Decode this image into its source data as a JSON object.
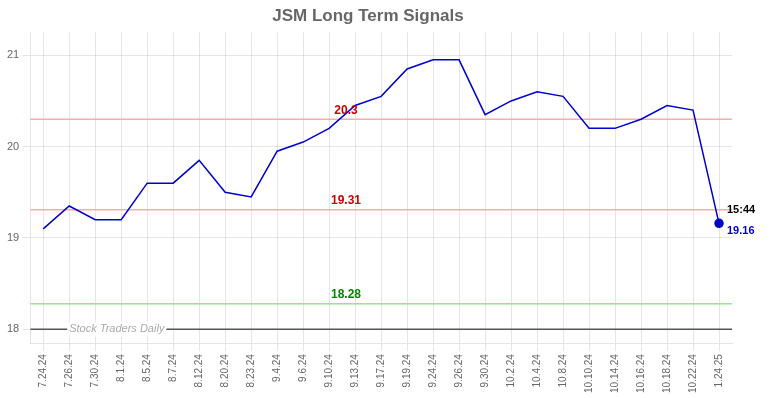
{
  "chart_data": {
    "type": "line",
    "title": "JSM Long Term Signals",
    "categories": [
      "7.24.24",
      "7.26.24",
      "7.30.24",
      "8.1.24",
      "8.5.24",
      "8.7.24",
      "8.12.24",
      "8.20.24",
      "8.23.24",
      "9.4.24",
      "9.6.24",
      "9.10.24",
      "9.13.24",
      "9.17.24",
      "9.19.24",
      "9.24.24",
      "9.26.24",
      "9.30.24",
      "10.2.24",
      "10.4.24",
      "10.8.24",
      "10.10.24",
      "10.14.24",
      "10.16.24",
      "10.18.24",
      "10.22.24",
      "1.24.25"
    ],
    "values": [
      19.1,
      19.35,
      19.2,
      19.2,
      19.6,
      19.6,
      19.85,
      19.5,
      19.45,
      19.95,
      20.05,
      20.2,
      20.45,
      20.55,
      20.85,
      20.95,
      20.95,
      20.35,
      20.5,
      20.6,
      20.55,
      20.2,
      20.2,
      20.3,
      20.45,
      20.4,
      19.16
    ],
    "color": "#0000cc",
    "ylim": [
      17.85,
      21.25
    ],
    "yticks": [
      18,
      19,
      20,
      21
    ],
    "grid": true,
    "hlines": [
      {
        "value": 20.3,
        "label": "20.3",
        "color": "#ffaaaa",
        "label_color": "#cc0000"
      },
      {
        "value": 19.31,
        "label": "19.31",
        "color": "#ffaaaa",
        "label_color": "#cc0000"
      },
      {
        "value": 18.28,
        "label": "18.28",
        "color": "#88ee88",
        "label_color": "#008800"
      },
      {
        "value": 18.0,
        "color": "#555555"
      }
    ],
    "annotations": [
      {
        "x": "1.24.25",
        "y": 19.16,
        "marker": "circle",
        "color": "#0000cc",
        "texts": [
          "15:44",
          "19.16"
        ]
      },
      {
        "x": "7.26.24",
        "y": 18.0,
        "text": "Stock Traders Daily"
      }
    ]
  }
}
